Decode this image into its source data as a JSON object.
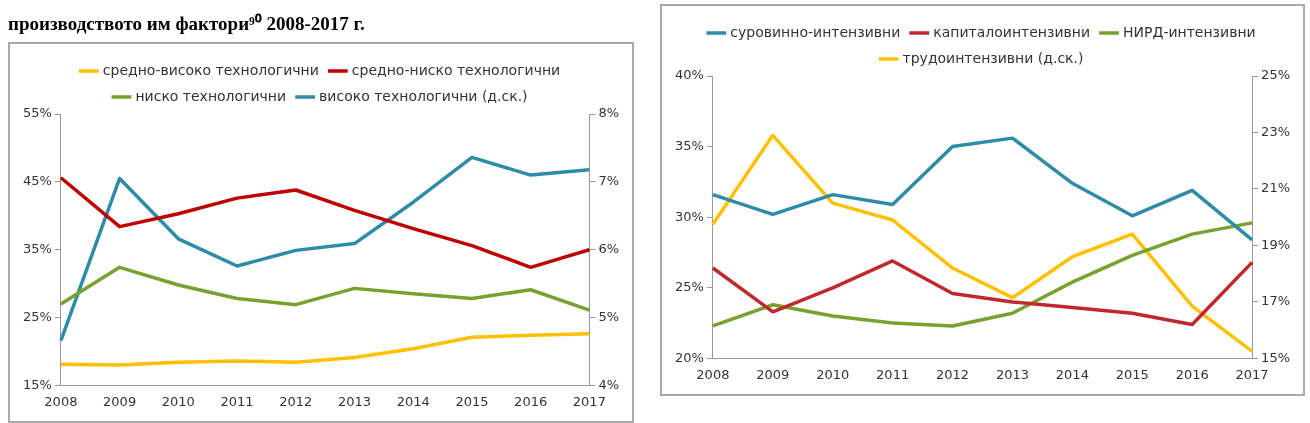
{
  "chart_data": [
    {
      "type": "line",
      "title": "производството им фактори⁹⁰ 2008-2017 г.",
      "categories": [
        "2008",
        "2009",
        "2010",
        "2011",
        "2012",
        "2013",
        "2014",
        "2015",
        "2016",
        "2017"
      ],
      "series": [
        {
          "name": "средно-високо технологични",
          "color": "#ffc000",
          "values": [
            18.1,
            18.0,
            18.4,
            18.6,
            18.4,
            19.1,
            20.4,
            22.1,
            22.4,
            22.6
          ]
        },
        {
          "name": "средно-ниско технологични",
          "color": "#c00000",
          "values": [
            45.6,
            38.4,
            40.3,
            42.6,
            43.8,
            40.8,
            38.1,
            35.6,
            32.4,
            35.0
          ]
        },
        {
          "name": "ниско технологични",
          "color": "#77a22f",
          "values": [
            27.0,
            32.4,
            29.8,
            27.8,
            26.9,
            29.3,
            28.5,
            27.8,
            29.1,
            26.1
          ]
        },
        {
          "name": "високо технологични (д.ск.)",
          "color": "#2e8ca6",
          "axis": "y2",
          "values": [
            4.66,
            7.05,
            6.16,
            5.76,
            5.99,
            6.09,
            6.7,
            7.36,
            7.1,
            7.18
          ]
        }
      ],
      "ylim": [
        15,
        55
      ],
      "yticks": [
        {
          "value": 15,
          "label": "15%"
        },
        {
          "value": 25,
          "label": "25%"
        },
        {
          "value": 35,
          "label": "35%"
        },
        {
          "value": 45,
          "label": "45%"
        },
        {
          "value": 55,
          "label": "55%"
        }
      ],
      "y2lim": [
        4,
        8
      ],
      "y2ticks": [
        {
          "value": 4,
          "label": "4%"
        },
        {
          "value": 5,
          "label": "5%"
        },
        {
          "value": 6,
          "label": "6%"
        },
        {
          "value": 7,
          "label": "7%"
        },
        {
          "value": 8,
          "label": "8%"
        }
      ],
      "grid": false,
      "legend": "top",
      "marker": "none",
      "line_style": "solid"
    },
    {
      "type": "line",
      "categories": [
        "2008",
        "2009",
        "2010",
        "2011",
        "2012",
        "2013",
        "2014",
        "2015",
        "2016",
        "2017"
      ],
      "series": [
        {
          "name": "суровинно-интензивни",
          "color": "#2e8ca6",
          "values": [
            31.6,
            30.2,
            31.6,
            30.9,
            35.0,
            35.6,
            32.4,
            30.1,
            31.9,
            28.4
          ]
        },
        {
          "name": "капиталоинтензивни",
          "color": "#c0282d",
          "values": [
            26.4,
            23.3,
            25.0,
            26.9,
            24.6,
            24.0,
            23.6,
            23.2,
            22.4,
            26.8
          ]
        },
        {
          "name": "НИРД-интензивни",
          "color": "#77a22f",
          "values": [
            22.3,
            23.8,
            23.0,
            22.5,
            22.3,
            23.2,
            25.4,
            27.3,
            28.8,
            29.6
          ]
        },
        {
          "name": "трудоинтензивни (д.ск.)",
          "color": "#ffc000",
          "axis": "y2",
          "values": [
            19.75,
            22.9,
            20.5,
            19.9,
            18.2,
            17.15,
            18.6,
            19.4,
            16.85,
            15.25
          ]
        }
      ],
      "ylim": [
        20,
        40
      ],
      "yticks": [
        {
          "value": 20,
          "label": "20%"
        },
        {
          "value": 25,
          "label": "25%"
        },
        {
          "value": 30,
          "label": "30%"
        },
        {
          "value": 35,
          "label": "35%"
        },
        {
          "value": 40,
          "label": "40%"
        }
      ],
      "y2lim": [
        15,
        25
      ],
      "y2ticks": [
        {
          "value": 15,
          "label": "15%"
        },
        {
          "value": 17,
          "label": "17%"
        },
        {
          "value": 19,
          "label": "19%"
        },
        {
          "value": 21,
          "label": "21%"
        },
        {
          "value": 23,
          "label": "23%"
        },
        {
          "value": 25,
          "label": "25%"
        }
      ],
      "grid": false,
      "legend": "top",
      "marker": "none",
      "line_style": "solid"
    }
  ]
}
